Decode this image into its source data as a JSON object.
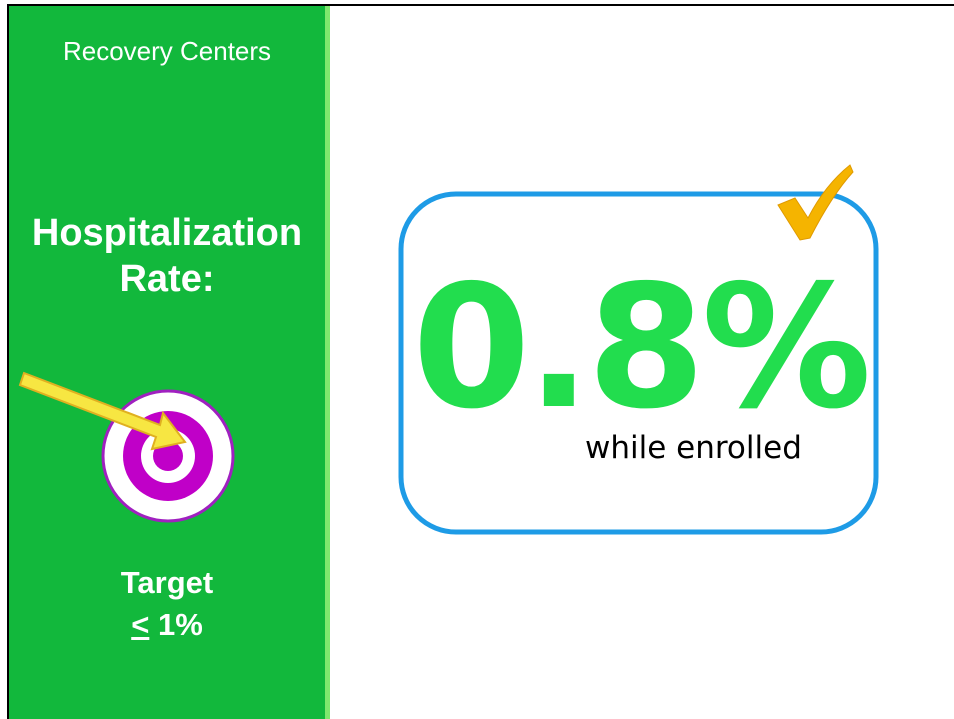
{
  "sidebar": {
    "title": "Recovery Centers",
    "heading_lines": [
      "Hospitalization",
      "Rate:"
    ],
    "target_label": "Target",
    "target_symbol": "<",
    "target_value": "1%"
  },
  "main": {
    "value": "0.8%",
    "caption": "while enrolled"
  }
}
